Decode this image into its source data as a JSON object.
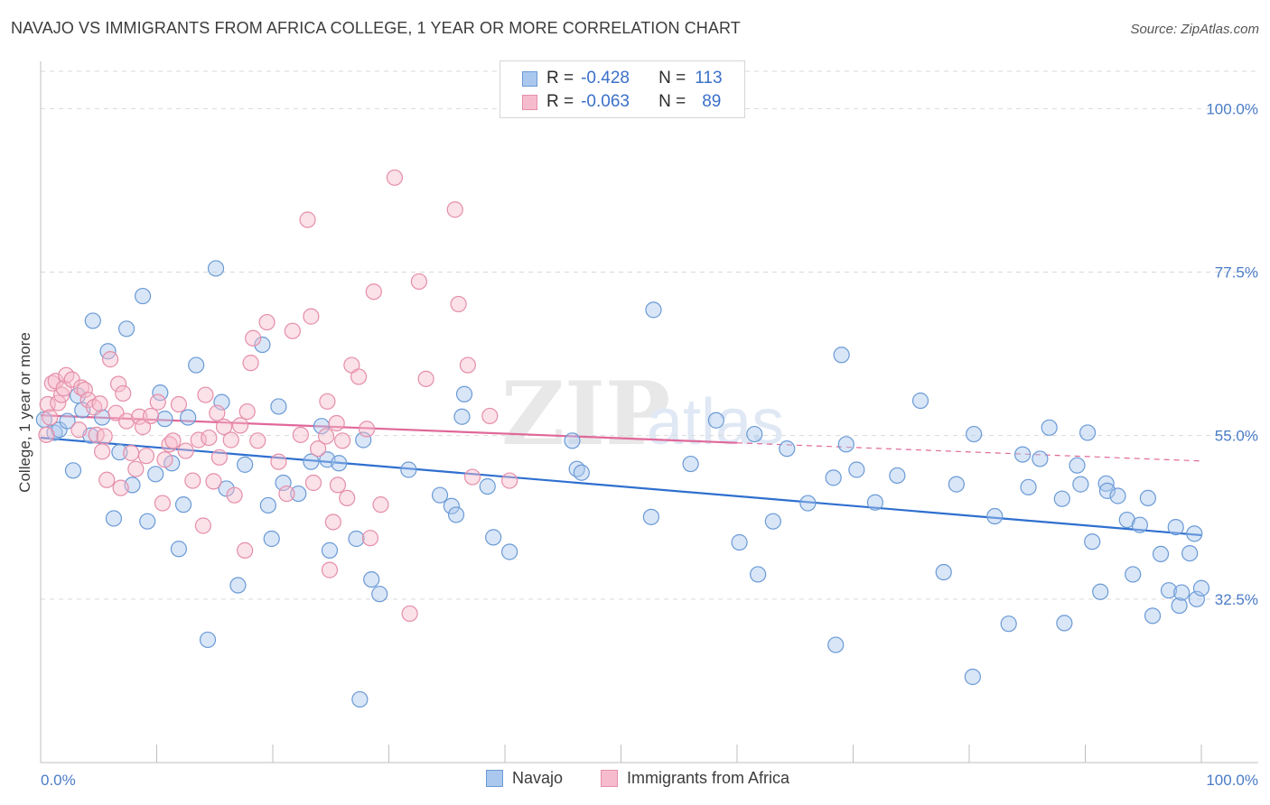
{
  "header": {
    "title": "NAVAJO VS IMMIGRANTS FROM AFRICA COLLEGE, 1 YEAR OR MORE CORRELATION CHART",
    "source": "Source: ZipAtlas.com"
  },
  "watermark": {
    "zip": "ZIP",
    "atlas": "atlas"
  },
  "legend": {
    "navajo": {
      "r_label": "R =",
      "r_value": "-0.428",
      "n_label": "N =",
      "n_value": "113"
    },
    "africa": {
      "r_label": "R =",
      "r_value": "-0.063",
      "n_label": "N =",
      "n_value": "89"
    }
  },
  "colors": {
    "navajo_fill": "#aac8ee",
    "navajo_stroke": "#6a9ad6",
    "navajo_line": "#2f6fcf",
    "africa_fill": "#f6bccd",
    "africa_stroke": "#e58ea9",
    "africa_line": "#e0689a",
    "grid": "#d9d9d9",
    "tick_text": "#4a7cc7"
  },
  "chart_data": {
    "type": "scatter",
    "title": "NAVAJO VS IMMIGRANTS FROM AFRICA COLLEGE, 1 YEAR OR MORE CORRELATION CHART",
    "xlabel": "",
    "ylabel": "College, 1 year or more",
    "xlim": [
      0,
      100
    ],
    "ylim": [
      10,
      106
    ],
    "x_tick_labels": [
      "0.0%",
      "100.0%"
    ],
    "y_ticks": [
      32.5,
      55.0,
      77.5,
      100.0
    ],
    "y_tick_labels": [
      "32.5%",
      "55.0%",
      "77.5%",
      "100.0%"
    ],
    "grid": true,
    "legend_position": "top-center",
    "series": [
      {
        "name": "Navajo",
        "r": -0.428,
        "n": 113,
        "trend": {
          "x": [
            0,
            100
          ],
          "y": [
            54.7,
            41.3
          ]
        },
        "points": [
          [
            0.3,
            57.2
          ],
          [
            1.2,
            55.4
          ],
          [
            1.6,
            55.8
          ],
          [
            2.3,
            57
          ],
          [
            2.8,
            50.2
          ],
          [
            3.2,
            60.5
          ],
          [
            3.6,
            58.5
          ],
          [
            4.3,
            55
          ],
          [
            4.5,
            70.8
          ],
          [
            5.3,
            57.5
          ],
          [
            5.8,
            66.6
          ],
          [
            6.3,
            43.6
          ],
          [
            6.8,
            52.7
          ],
          [
            7.4,
            69.7
          ],
          [
            7.9,
            48.2
          ],
          [
            8.8,
            74.2
          ],
          [
            9.2,
            43.2
          ],
          [
            9.9,
            49.7
          ],
          [
            10.3,
            60.9
          ],
          [
            10.7,
            57.3
          ],
          [
            11.3,
            51.2
          ],
          [
            11.9,
            39.4
          ],
          [
            12.3,
            45.5
          ],
          [
            12.7,
            57.5
          ],
          [
            13.4,
            64.7
          ],
          [
            14.4,
            26.9
          ],
          [
            15.1,
            78.0
          ],
          [
            15.6,
            59.6
          ],
          [
            16,
            47.7
          ],
          [
            17,
            34.4
          ],
          [
            17.6,
            51
          ],
          [
            19.1,
            67.5
          ],
          [
            19.6,
            45.4
          ],
          [
            19.9,
            40.8
          ],
          [
            20.5,
            59
          ],
          [
            20.9,
            48.5
          ],
          [
            22.2,
            47
          ],
          [
            23.3,
            51.4
          ],
          [
            24.2,
            56.3
          ],
          [
            24.7,
            51.7
          ],
          [
            24.9,
            39.2
          ],
          [
            25.7,
            51.2
          ],
          [
            27.2,
            40.8
          ],
          [
            27.5,
            18.7
          ],
          [
            27.8,
            54.4
          ],
          [
            28.5,
            35.2
          ],
          [
            29.2,
            33.2
          ],
          [
            31.7,
            50.3
          ],
          [
            34.4,
            46.8
          ],
          [
            35.4,
            45.3
          ],
          [
            35.8,
            44.1
          ],
          [
            36.3,
            57.6
          ],
          [
            36.5,
            60.7
          ],
          [
            38.5,
            48
          ],
          [
            39,
            41
          ],
          [
            40.4,
            39
          ],
          [
            45.8,
            54.3
          ],
          [
            46.2,
            50.4
          ],
          [
            46.6,
            49.9
          ],
          [
            52.8,
            72.3
          ],
          [
            52.6,
            43.8
          ],
          [
            56,
            51.1
          ],
          [
            58.2,
            57.1
          ],
          [
            60.2,
            40.3
          ],
          [
            61.5,
            55.2
          ],
          [
            61.8,
            35.9
          ],
          [
            63.1,
            43.2
          ],
          [
            64.3,
            53.2
          ],
          [
            66.1,
            45.7
          ],
          [
            68.5,
            26.2
          ],
          [
            68.3,
            49.2
          ],
          [
            69,
            66.1
          ],
          [
            69.4,
            53.8
          ],
          [
            70.3,
            50.3
          ],
          [
            71.9,
            45.8
          ],
          [
            73.8,
            49.5
          ],
          [
            75.8,
            59.8
          ],
          [
            77.8,
            36.2
          ],
          [
            78.9,
            48.3
          ],
          [
            80.3,
            21.8
          ],
          [
            80.4,
            55.2
          ],
          [
            82.2,
            43.9
          ],
          [
            83.4,
            29.1
          ],
          [
            84.6,
            52.4
          ],
          [
            85.1,
            47.9
          ],
          [
            86.1,
            51.8
          ],
          [
            86.9,
            56.1
          ],
          [
            88,
            46.3
          ],
          [
            88.2,
            29.2
          ],
          [
            89.3,
            50.9
          ],
          [
            89.6,
            48.3
          ],
          [
            90.2,
            55.4
          ],
          [
            90.6,
            40.4
          ],
          [
            91.3,
            33.5
          ],
          [
            91.8,
            48.4
          ],
          [
            91.9,
            47.4
          ],
          [
            92.8,
            46.7
          ],
          [
            93.6,
            43.4
          ],
          [
            94.1,
            35.9
          ],
          [
            94.7,
            42.7
          ],
          [
            95.4,
            46.4
          ],
          [
            95.8,
            30.2
          ],
          [
            96.5,
            38.7
          ],
          [
            97.2,
            33.7
          ],
          [
            97.8,
            42.4
          ],
          [
            98.1,
            31.6
          ],
          [
            98.3,
            33.4
          ],
          [
            99,
            38.8
          ],
          [
            99.4,
            41.5
          ],
          [
            99.6,
            32.5
          ],
          [
            100,
            34
          ]
        ]
      },
      {
        "name": "Immigrants from Africa",
        "r": -0.063,
        "n": 89,
        "trend": {
          "x": [
            0,
            60
          ],
          "y": [
            57.8,
            54.0
          ]
        },
        "trend_dashed": {
          "x": [
            60,
            100
          ],
          "y": [
            54.0,
            51.5
          ]
        },
        "points": [
          [
            0.5,
            55.1
          ],
          [
            0.6,
            59.3
          ],
          [
            0.8,
            57.5
          ],
          [
            1,
            62.2
          ],
          [
            1.3,
            62.5
          ],
          [
            1.5,
            59.5
          ],
          [
            1.8,
            60.6
          ],
          [
            2,
            61.5
          ],
          [
            2.2,
            63.3
          ],
          [
            2.7,
            62.7
          ],
          [
            3.3,
            55.8
          ],
          [
            3.5,
            61.6
          ],
          [
            3.8,
            61.3
          ],
          [
            4.1,
            59.9
          ],
          [
            4.6,
            58.9
          ],
          [
            4.8,
            55.1
          ],
          [
            5.1,
            59.4
          ],
          [
            5.3,
            52.8
          ],
          [
            5.5,
            54.9
          ],
          [
            5.7,
            48.9
          ],
          [
            6,
            65.5
          ],
          [
            6.5,
            58.1
          ],
          [
            6.7,
            62.1
          ],
          [
            6.9,
            47.8
          ],
          [
            7.1,
            60.8
          ],
          [
            7.4,
            57
          ],
          [
            7.8,
            52.6
          ],
          [
            8.2,
            50.4
          ],
          [
            8.5,
            57.6
          ],
          [
            8.8,
            56.2
          ],
          [
            9.1,
            52.2
          ],
          [
            9.5,
            57.7
          ],
          [
            10.1,
            59.6
          ],
          [
            10.5,
            45.7
          ],
          [
            10.7,
            51.7
          ],
          [
            11.1,
            53.8
          ],
          [
            11.4,
            54.3
          ],
          [
            11.9,
            59.3
          ],
          [
            12.5,
            52.9
          ],
          [
            13.1,
            48.8
          ],
          [
            13.6,
            54.4
          ],
          [
            14,
            42.6
          ],
          [
            14.2,
            60.6
          ],
          [
            14.5,
            54.7
          ],
          [
            14.9,
            48.7
          ],
          [
            15.2,
            58.1
          ],
          [
            15.4,
            52
          ],
          [
            15.8,
            56.2
          ],
          [
            16.4,
            54.4
          ],
          [
            16.7,
            46.8
          ],
          [
            17.2,
            56.4
          ],
          [
            17.6,
            39.2
          ],
          [
            17.8,
            58.3
          ],
          [
            18.1,
            65
          ],
          [
            18.3,
            68.4
          ],
          [
            18.7,
            54.3
          ],
          [
            19.5,
            70.6
          ],
          [
            20.5,
            51.4
          ],
          [
            21.2,
            47
          ],
          [
            21.7,
            69.4
          ],
          [
            22.4,
            55.1
          ],
          [
            23,
            84.7
          ],
          [
            23.3,
            71.4
          ],
          [
            23.5,
            48.5
          ],
          [
            23.9,
            53.2
          ],
          [
            24.6,
            54.9
          ],
          [
            24.7,
            59.7
          ],
          [
            24.9,
            36.5
          ],
          [
            25.2,
            43.1
          ],
          [
            25.5,
            56.7
          ],
          [
            25.6,
            48.2
          ],
          [
            26,
            54.3
          ],
          [
            26.4,
            46.4
          ],
          [
            26.8,
            64.7
          ],
          [
            27.4,
            63.1
          ],
          [
            28.1,
            55.9
          ],
          [
            28.4,
            40.9
          ],
          [
            28.7,
            74.8
          ],
          [
            29.3,
            45.5
          ],
          [
            30.5,
            90.5
          ],
          [
            31.8,
            30.5
          ],
          [
            32.6,
            76.2
          ],
          [
            33.2,
            62.8
          ],
          [
            35.7,
            86.1
          ],
          [
            36,
            73.1
          ],
          [
            36.8,
            64.7
          ],
          [
            37.2,
            49.3
          ],
          [
            38.7,
            57.7
          ],
          [
            40.4,
            48.8
          ]
        ]
      }
    ]
  },
  "bottom_legend": {
    "navajo": "Navajo",
    "africa": "Immigrants from Africa"
  }
}
